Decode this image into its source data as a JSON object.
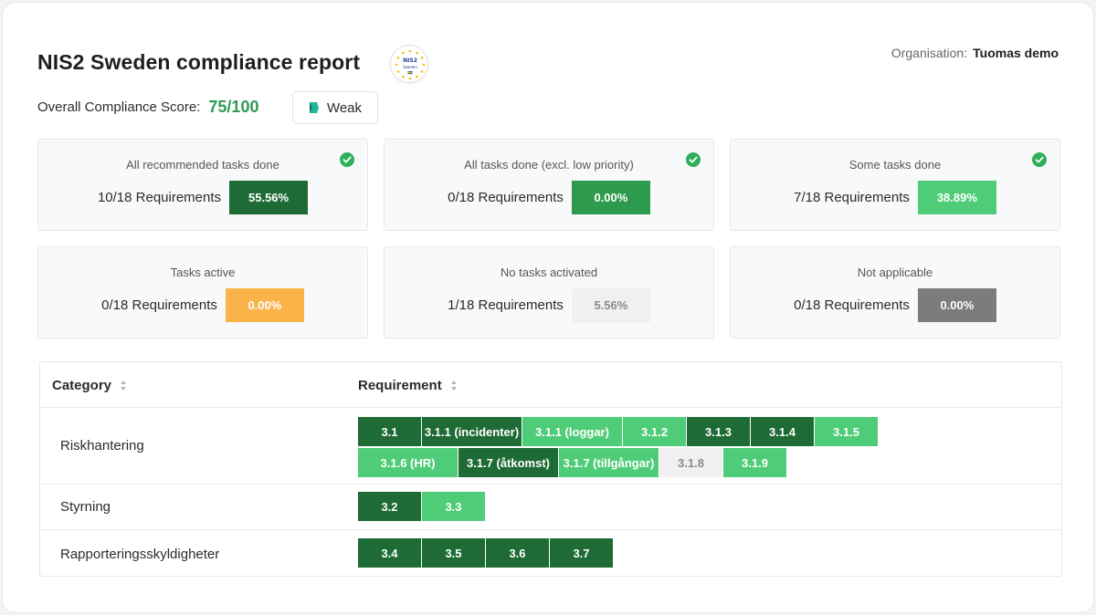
{
  "header": {
    "title": "NIS2 Sweden compliance report",
    "logo_text_top": "NIS2",
    "logo_text_bottom": "Sweden",
    "org_label": "Organisation:",
    "org_name": "Tuomas demo"
  },
  "score": {
    "label": "Overall Compliance Score:",
    "value": "75/100",
    "rating": "Weak"
  },
  "colors": {
    "dark_green": "#1e6b35",
    "mid_green": "#2e9a4d",
    "light_green": "#4fcc78",
    "orange": "#fbb44a",
    "light_grey": "#f0f0f0",
    "dark_grey": "#7c7c7c",
    "check_green": "#2fae5b"
  },
  "cards": [
    {
      "label": "All recommended tasks done",
      "count": "10/18 Requirements",
      "pct": "55.56%",
      "color": "#1e6b35",
      "text_color": "#ffffff",
      "check": true
    },
    {
      "label": "All tasks done (excl. low priority)",
      "count": "0/18 Requirements",
      "pct": "0.00%",
      "color": "#2e9a4d",
      "text_color": "#ffffff",
      "check": true
    },
    {
      "label": "Some tasks done",
      "count": "7/18 Requirements",
      "pct": "38.89%",
      "color": "#4fcc78",
      "text_color": "#ffffff",
      "check": true
    },
    {
      "label": "Tasks active",
      "count": "0/18 Requirements",
      "pct": "0.00%",
      "color": "#fbb44a",
      "text_color": "#ffffff",
      "check": false
    },
    {
      "label": "No tasks activated",
      "count": "1/18 Requirements",
      "pct": "5.56%",
      "color": "#f0f0f0",
      "text_color": "#8a8a8a",
      "check": false
    },
    {
      "label": "Not applicable",
      "count": "0/18 Requirements",
      "pct": "0.00%",
      "color": "#7c7c7c",
      "text_color": "#ffffff",
      "check": false
    }
  ],
  "table": {
    "col_category": "Category",
    "col_requirement": "Requirement",
    "rows": [
      {
        "category": "Riskhantering",
        "requirements": [
          {
            "label": "3.1",
            "status": "dark",
            "wide": false
          },
          {
            "label": "3.1.1 (incidenter)",
            "status": "dark",
            "wide": true
          },
          {
            "label": "3.1.1 (loggar)",
            "status": "light",
            "wide": true
          },
          {
            "label": "3.1.2",
            "status": "light",
            "wide": false
          },
          {
            "label": "3.1.3",
            "status": "dark",
            "wide": false
          },
          {
            "label": "3.1.4",
            "status": "dark",
            "wide": false
          },
          {
            "label": "3.1.5",
            "status": "light",
            "wide": false
          },
          {
            "label": "3.1.6 (HR)",
            "status": "light",
            "wide": true
          },
          {
            "label": "3.1.7 (åtkomst)",
            "status": "dark",
            "wide": true
          },
          {
            "label": "3.1.7 (tillgångar)",
            "status": "light",
            "wide": true
          },
          {
            "label": "3.1.8",
            "status": "grey",
            "wide": false
          },
          {
            "label": "3.1.9",
            "status": "light",
            "wide": false
          }
        ]
      },
      {
        "category": "Styrning",
        "requirements": [
          {
            "label": "3.2",
            "status": "dark",
            "wide": false
          },
          {
            "label": "3.3",
            "status": "light",
            "wide": false
          }
        ]
      },
      {
        "category": "Rapporteringsskyldigheter",
        "requirements": [
          {
            "label": "3.4",
            "status": "dark",
            "wide": false
          },
          {
            "label": "3.5",
            "status": "dark",
            "wide": false
          },
          {
            "label": "3.6",
            "status": "dark",
            "wide": false
          },
          {
            "label": "3.7",
            "status": "dark",
            "wide": false
          }
        ]
      }
    ]
  }
}
